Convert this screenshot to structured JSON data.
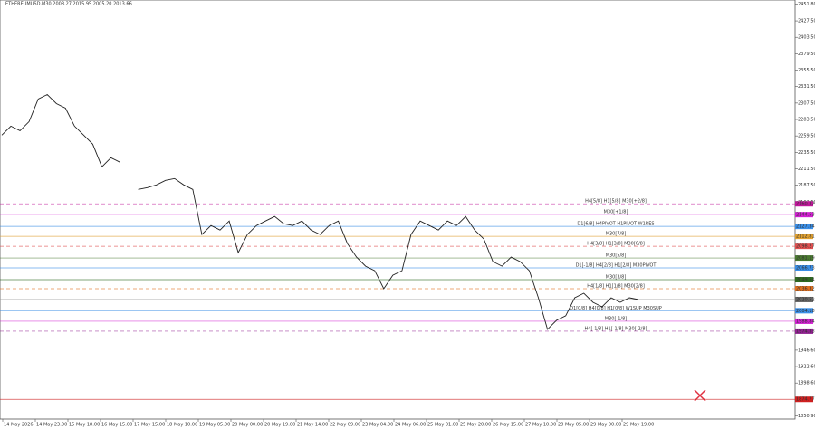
{
  "chart_data": {
    "type": "line",
    "title": "ETHEREUMUSD,M30  2008.27 2015.95 2005.20 2013.66",
    "color": "#222222",
    "values": [
      2260.6,
      2273.7,
      2267.1,
      2280.3,
      2313.3,
      2319.9,
      2306.7,
      2300.1,
      2273.7,
      2260.6,
      2247.4,
      2214.4,
      2227.6,
      2221.0,
      null,
      2181.4,
      2184.0,
      2188.0,
      2194.6,
      2197.2,
      2188.0,
      2181.4,
      2115.5,
      2128.6,
      2122.0,
      2135.2,
      2089.1,
      2115.5,
      2128.6,
      2135.2,
      2141.8,
      2131.3,
      2128.6,
      2135.2,
      2122.0,
      2115.5,
      2128.6,
      2135.2,
      2102.3,
      2082.5,
      2069.3,
      2062.7,
      2036.3,
      2056.1,
      2062.7,
      2115.5,
      2135.2,
      2128.6,
      2122.0,
      2135.2,
      2128.6,
      2141.8,
      2122.0,
      2108.9,
      2075.9,
      2069.3,
      2082.5,
      2075.9,
      2062.7,
      2023.1,
      1977.0,
      1990.2,
      1996.8,
      2023.1,
      2029.7,
      2016.5,
      2009.9,
      2023.1,
      2016.5,
      2023.1,
      2020.5
    ],
    "xtick_labels": [
      "14 May 2026",
      "14 May 23:00",
      "15 May 18:00",
      "16 May 15:00",
      "17 May 15:00",
      "18 May 10:00",
      "19 May 05:00",
      "20 May 00:00",
      "20 May 19:00",
      "21 May 14:00",
      "22 May 09:00",
      "23 May 04:00",
      "24 May 06:00",
      "25 May 01:00",
      "25 May 20:00",
      "26 May 15:00",
      "27 May 10:00",
      "28 May 05:00",
      "29 May 00:00",
      "29 May 19:00"
    ],
    "ylim": [
      1846,
      2458
    ],
    "yticks": [
      {
        "value": 2451.8,
        "label": "2451.80"
      },
      {
        "value": 2427.5,
        "label": "2427.50"
      },
      {
        "value": 2403.5,
        "label": "2403.50"
      },
      {
        "value": 2379.5,
        "label": "2379.50"
      },
      {
        "value": 2355.5,
        "label": "2355.50"
      },
      {
        "value": 2331.5,
        "label": "2331.50"
      },
      {
        "value": 2307.5,
        "label": "2307.50"
      },
      {
        "value": 2283.5,
        "label": "2283.50"
      },
      {
        "value": 2259.5,
        "label": "2259.50"
      },
      {
        "value": 2235.5,
        "label": "2235.50"
      },
      {
        "value": 2211.5,
        "label": "2211.50"
      },
      {
        "value": 2187.5,
        "label": "2187.50"
      },
      {
        "value": 2162.5,
        "label": "2162.50"
      },
      {
        "value": 1946.6,
        "label": "1946.60"
      },
      {
        "value": 1922.6,
        "label": "1922.60"
      },
      {
        "value": 1898.6,
        "label": "1898.60"
      },
      {
        "value": 1850.9,
        "label": "1850.90"
      }
    ],
    "levels": [
      {
        "label": "H4[5/8] H1[5/8] M30[+2/8]",
        "value": 2160.32,
        "color": "#c0189a",
        "dashed": true
      },
      {
        "label": "M30[+1/8]",
        "value": 2144.53,
        "color": "#d020d0",
        "dashed": false
      },
      {
        "label": "D1[6/8] H4PIVOT H1PIVOT W1RES",
        "value": 2127.34,
        "color": "#3a8ee6",
        "dashed": false
      },
      {
        "label": "M30[7/8]",
        "value": 2112.81,
        "color": "#e0a030",
        "dashed": false
      },
      {
        "label": "H4[3/8] H1[3/8] M30[6/8]",
        "value": 2098.27,
        "color": "#e05050",
        "dashed": true
      },
      {
        "label": "M30[5/8]",
        "value": 2081.19,
        "color": "#4a7a30",
        "dashed": false
      },
      {
        "label": "D1[-1/8] H4[2/8] H1[2/8] M30PIVOT",
        "value": 2066.73,
        "color": "#3a8ee6",
        "dashed": false
      },
      {
        "label": "M30[3/8]",
        "value": 2049.54,
        "color": "#2e6a20",
        "dashed": false
      },
      {
        "label": "H4[1/8] H1[1/8] M30[2/8]",
        "value": 2036.32,
        "color": "#e07020",
        "dashed": true
      },
      {
        "label": "D1[0/8] H4[0/8] H1[0/8] W1SUP M30SUP",
        "value": 2004.18,
        "color": "#3a8ee6",
        "dashed": false
      },
      {
        "label": "M30[-1/8]",
        "value": 1988.84,
        "color": "#d020d0",
        "dashed": false
      },
      {
        "label": "H4[-1/8] H1[-1/8] M30[-2/8]",
        "value": 1974.33,
        "color": "#902090",
        "dashed": true
      },
      {
        "label": null,
        "value": 1874.77,
        "color": "#d02020",
        "dashed": false
      }
    ],
    "current_price": 2020.52
  }
}
